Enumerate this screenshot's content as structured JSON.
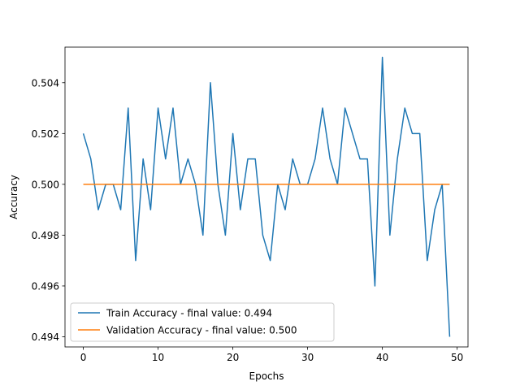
{
  "chart_data": {
    "type": "line",
    "title": "",
    "xlabel": "Epochs",
    "ylabel": "Accuracy",
    "xlim": [
      -2.45,
      51.45
    ],
    "ylim": [
      0.4936,
      0.5054
    ],
    "xticks": [
      0,
      10,
      20,
      30,
      40,
      50
    ],
    "yticks": [
      0.494,
      0.496,
      0.498,
      0.5,
      0.502,
      0.504
    ],
    "ytick_labels": [
      "0.494",
      "0.496",
      "0.498",
      "0.500",
      "0.502",
      "0.504"
    ],
    "grid": false,
    "legend_position": "lower-left",
    "x": [
      0,
      1,
      2,
      3,
      4,
      5,
      6,
      7,
      8,
      9,
      10,
      11,
      12,
      13,
      14,
      15,
      16,
      17,
      18,
      19,
      20,
      21,
      22,
      23,
      24,
      25,
      26,
      27,
      28,
      29,
      30,
      31,
      32,
      33,
      34,
      35,
      36,
      37,
      38,
      39,
      40,
      41,
      42,
      43,
      44,
      45,
      46,
      47,
      48,
      49
    ],
    "series": [
      {
        "name": "Train Accuracy - final value: 0.494",
        "color": "#1f77b4",
        "values": [
          0.502,
          0.501,
          0.499,
          0.5,
          0.5,
          0.499,
          0.503,
          0.497,
          0.501,
          0.499,
          0.503,
          0.501,
          0.503,
          0.5,
          0.501,
          0.5,
          0.498,
          0.504,
          0.5,
          0.498,
          0.502,
          0.499,
          0.501,
          0.501,
          0.498,
          0.497,
          0.5,
          0.499,
          0.501,
          0.5,
          0.5,
          0.501,
          0.503,
          0.501,
          0.5,
          0.503,
          0.502,
          0.501,
          0.501,
          0.496,
          0.505,
          0.498,
          0.501,
          0.503,
          0.502,
          0.502,
          0.497,
          0.499,
          0.5,
          0.494
        ]
      },
      {
        "name": "Validation Accuracy - final value: 0.500",
        "color": "#ff7f0e",
        "values": [
          0.5,
          0.5,
          0.5,
          0.5,
          0.5,
          0.5,
          0.5,
          0.5,
          0.5,
          0.5,
          0.5,
          0.5,
          0.5,
          0.5,
          0.5,
          0.5,
          0.5,
          0.5,
          0.5,
          0.5,
          0.5,
          0.5,
          0.5,
          0.5,
          0.5,
          0.5,
          0.5,
          0.5,
          0.5,
          0.5,
          0.5,
          0.5,
          0.5,
          0.5,
          0.5,
          0.5,
          0.5,
          0.5,
          0.5,
          0.5,
          0.5,
          0.5,
          0.5,
          0.5,
          0.5,
          0.5,
          0.5,
          0.5,
          0.5,
          0.5
        ]
      }
    ]
  }
}
